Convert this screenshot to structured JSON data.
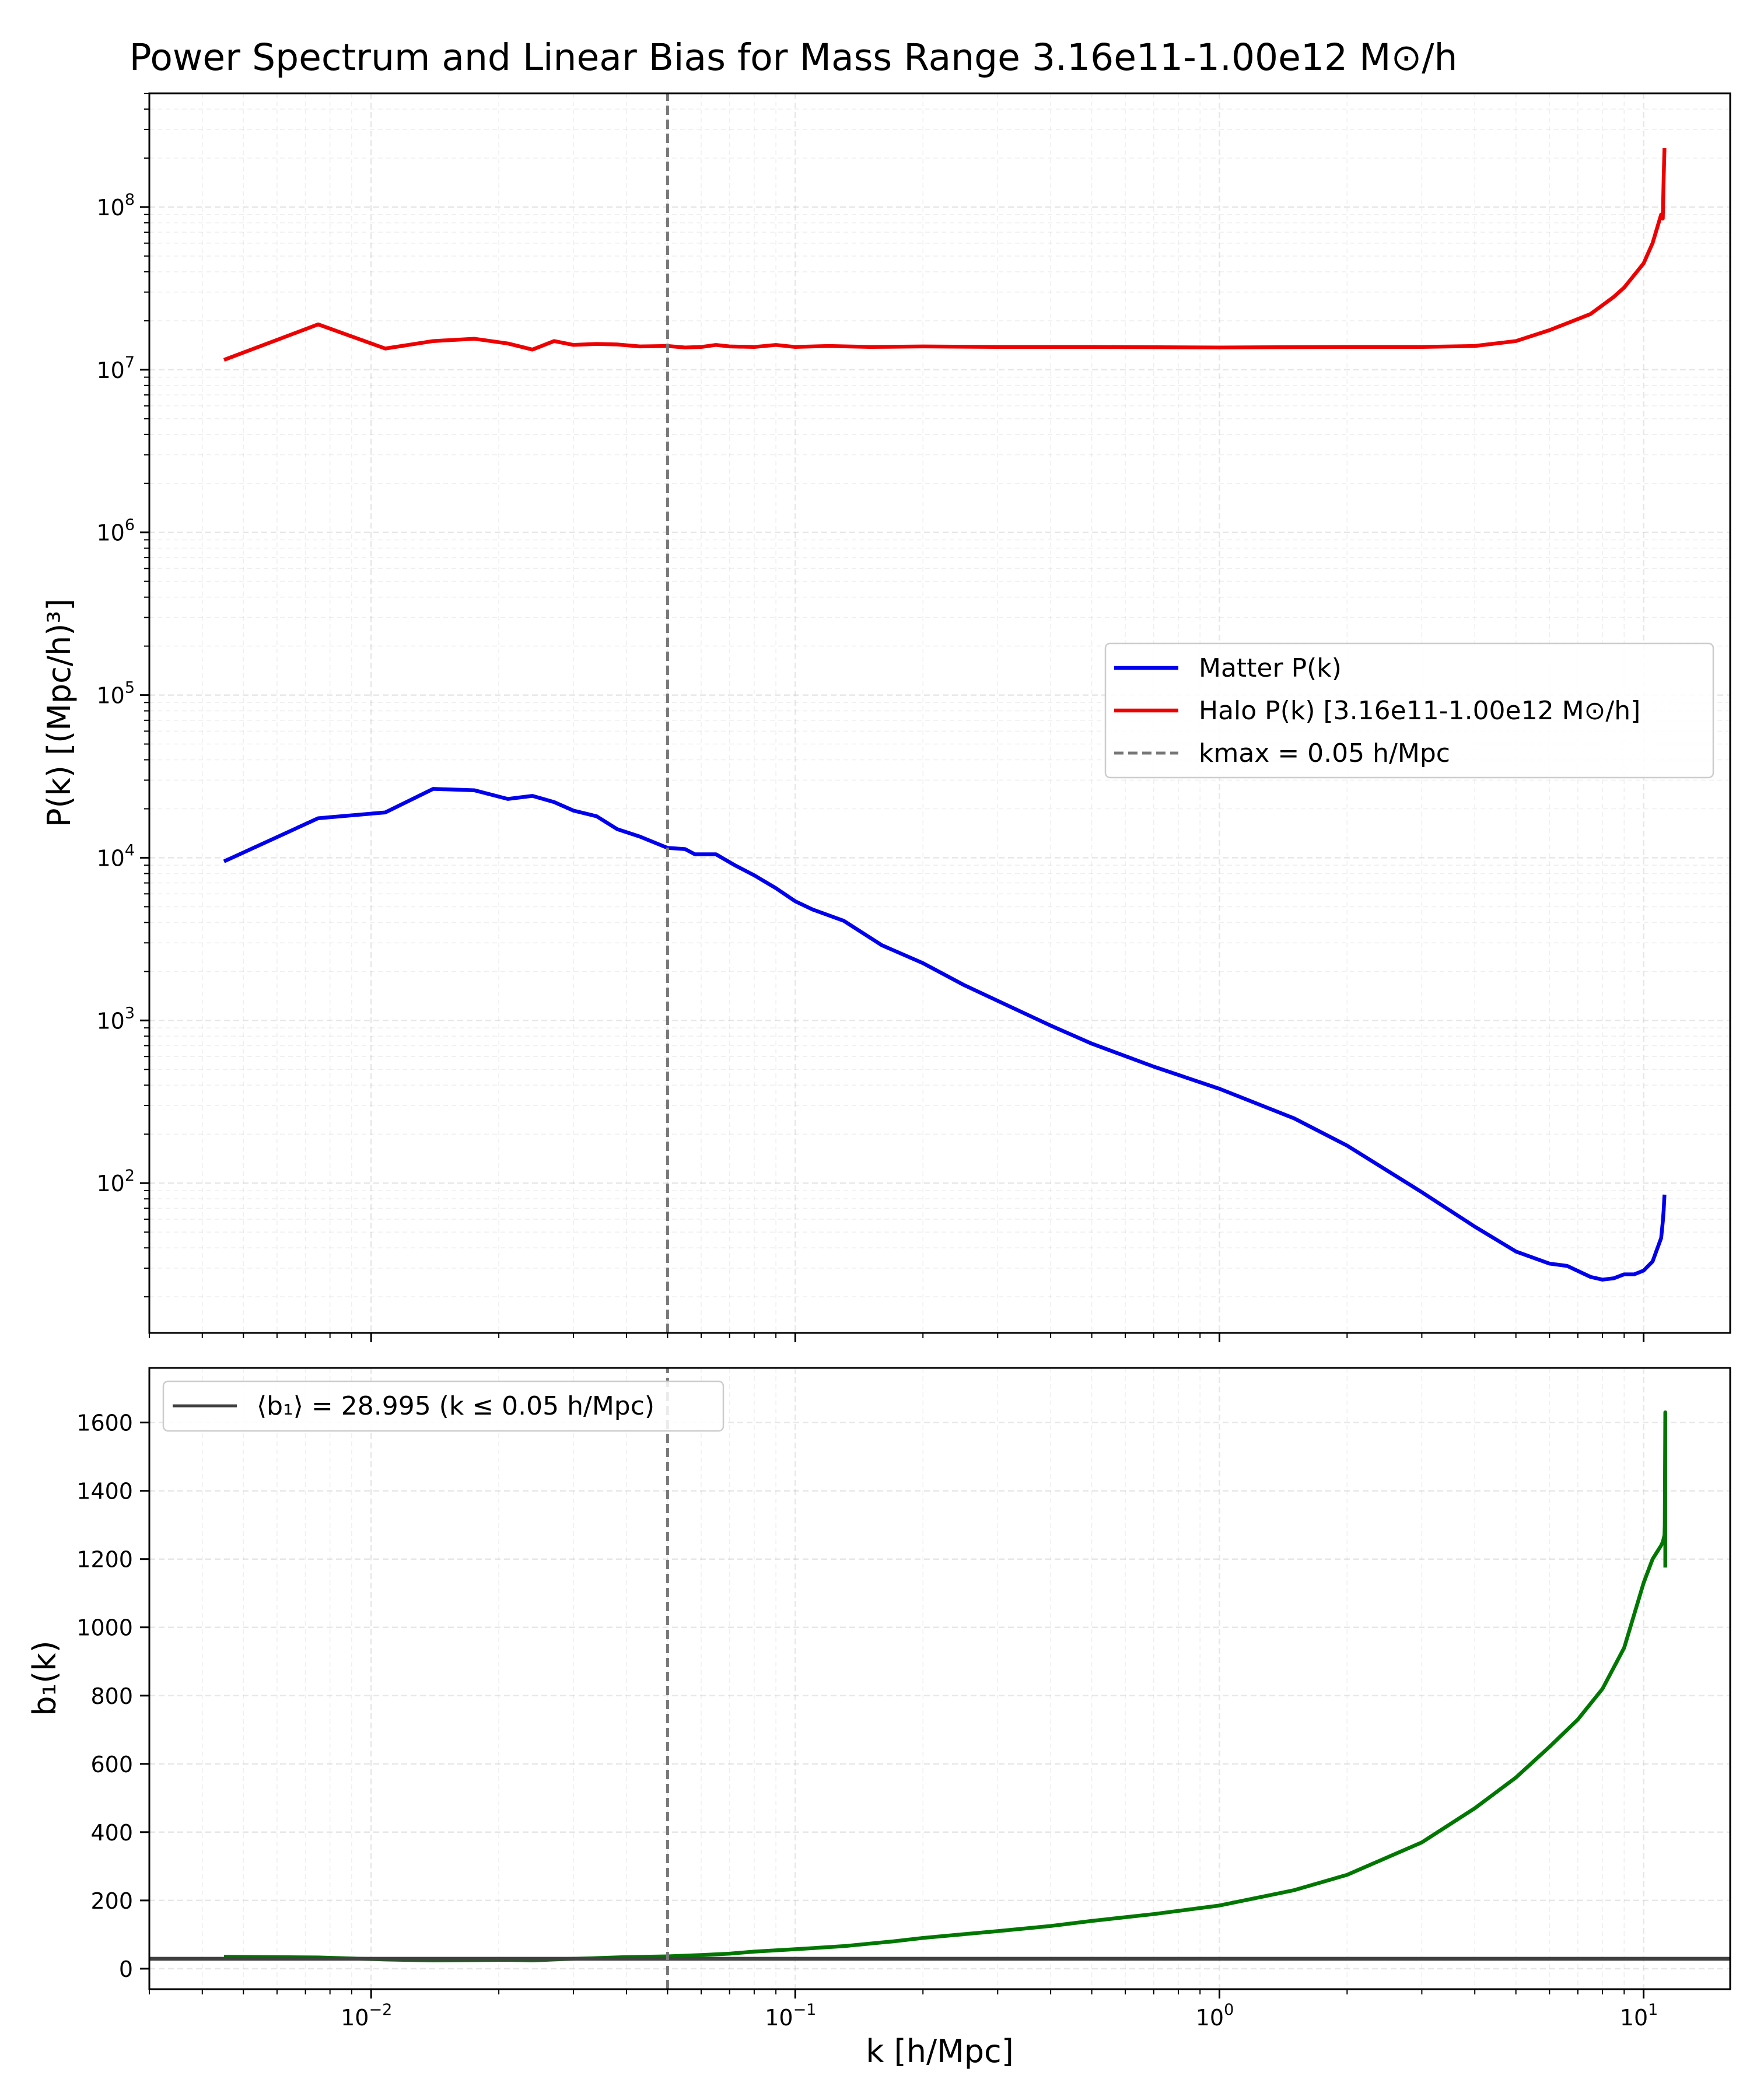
{
  "chart_data": [
    {
      "type": "line",
      "panel": "top",
      "title": "Power Spectrum and Linear Bias for Mass Range 3.16e11-1.00e12 M⊙/h",
      "xlabel": "",
      "ylabel": "P(k) [(Mpc/h)³]",
      "xscale": "log",
      "yscale": "log",
      "xlim": [
        0.003,
        16
      ],
      "ylim": [
        12,
        500000000
      ],
      "x_ticks": [
        0.01,
        0.1,
        1,
        10
      ],
      "y_ticks": [
        {
          "value": 100,
          "label": "10",
          "exp": "2"
        },
        {
          "value": 1000,
          "label": "10",
          "exp": "3"
        },
        {
          "value": 10000,
          "label": "10",
          "exp": "4"
        },
        {
          "value": 100000,
          "label": "10",
          "exp": "5"
        },
        {
          "value": 1000000,
          "label": "10",
          "exp": "6"
        },
        {
          "value": 10000000,
          "label": "10",
          "exp": "7"
        },
        {
          "value": 100000000,
          "label": "10",
          "exp": "8"
        }
      ],
      "grid": true,
      "legend_position": "center-right",
      "series": [
        {
          "name": "Matter P(k)",
          "color": "#0000ee",
          "x": [
            0.0045,
            0.0075,
            0.0108,
            0.014,
            0.0175,
            0.021,
            0.024,
            0.027,
            0.03,
            0.034,
            0.038,
            0.043,
            0.05,
            0.055,
            0.058,
            0.065,
            0.072,
            0.08,
            0.09,
            0.1,
            0.11,
            0.13,
            0.16,
            0.2,
            0.25,
            0.3,
            0.4,
            0.5,
            0.7,
            1.0,
            1.5,
            2.0,
            3.0,
            4.0,
            5.0,
            6.0,
            6.6,
            7.5,
            8.0,
            8.5,
            9.0,
            9.5,
            10.0,
            10.5,
            11.0,
            11.1,
            11.15,
            11.2
          ],
          "y": [
            9500,
            17500,
            19000,
            26500,
            26000,
            23000,
            24000,
            22000,
            19500,
            18000,
            15000,
            13500,
            11500,
            11300,
            10500,
            10500,
            9000,
            7800,
            6500,
            5400,
            4800,
            4100,
            2900,
            2250,
            1650,
            1320,
            930,
            720,
            520,
            380,
            250,
            170,
            88,
            54,
            38,
            32,
            31,
            26.5,
            25.5,
            26,
            27.5,
            27.5,
            29,
            33,
            46,
            58,
            68,
            85
          ]
        },
        {
          "name": "Halo P(k) [3.16e11-1.00e12 M⊙/h]",
          "color": "#ee0000",
          "x": [
            0.0045,
            0.0075,
            0.0108,
            0.014,
            0.0175,
            0.021,
            0.024,
            0.027,
            0.03,
            0.034,
            0.038,
            0.043,
            0.05,
            0.055,
            0.06,
            0.065,
            0.07,
            0.08,
            0.09,
            0.1,
            0.12,
            0.15,
            0.2,
            0.3,
            0.5,
            1.0,
            2.0,
            3.0,
            4.0,
            5.0,
            6.0,
            6.5,
            7.5,
            8.5,
            9.0,
            10.0,
            10.5,
            11.0,
            11.1,
            11.15,
            11.2
          ],
          "y": [
            11500000,
            19000000,
            13500000,
            15000000,
            15500000,
            14500000,
            13300000,
            15000000,
            14200000,
            14400000,
            14300000,
            13900000,
            14000000,
            13700000,
            13800000,
            14200000,
            13900000,
            13800000,
            14200000,
            13800000,
            14000000,
            13800000,
            13900000,
            13800000,
            13800000,
            13700000,
            13800000,
            13800000,
            14000000,
            15000000,
            17500000,
            19000000,
            22000000,
            28000000,
            32000000,
            45000000,
            60000000,
            90000000,
            85000000,
            150000000,
            230000000
          ]
        },
        {
          "name": "kmax = 0.05 h/Mpc",
          "color": "#777777",
          "style": "dashed",
          "x": [
            0.05,
            0.05
          ],
          "y": [
            12,
            500000000
          ]
        }
      ]
    },
    {
      "type": "line",
      "panel": "bottom",
      "title": "",
      "xlabel": "k [h/Mpc]",
      "ylabel": "b₁(k)",
      "xscale": "log",
      "yscale": "linear",
      "xlim": [
        0.003,
        16
      ],
      "ylim": [
        -60,
        1760
      ],
      "x_ticks": [
        {
          "value": 0.01,
          "label": "10",
          "exp": "−2"
        },
        {
          "value": 0.1,
          "label": "10",
          "exp": "−1"
        },
        {
          "value": 1,
          "label": "10",
          "exp": "0"
        },
        {
          "value": 10,
          "label": "10",
          "exp": "1"
        }
      ],
      "y_ticks": [
        0,
        200,
        400,
        600,
        800,
        1000,
        1200,
        1400,
        1600
      ],
      "grid": true,
      "legend_position": "top-left",
      "series": [
        {
          "name": "",
          "color": "#007700",
          "x": [
            0.0045,
            0.0075,
            0.0108,
            0.014,
            0.0175,
            0.021,
            0.024,
            0.027,
            0.03,
            0.034,
            0.04,
            0.05,
            0.06,
            0.07,
            0.08,
            0.1,
            0.13,
            0.17,
            0.2,
            0.3,
            0.4,
            0.5,
            0.7,
            1.0,
            1.5,
            2.0,
            3.0,
            4.0,
            5.0,
            6.0,
            7.0,
            8.0,
            9.0,
            10.0,
            10.5,
            11.0,
            11.1,
            11.15,
            11.2,
            11.22,
            11.25,
            11.25
          ],
          "y": [
            35,
            33,
            27,
            24,
            25,
            26,
            24,
            27,
            29,
            31,
            34,
            36,
            40,
            44,
            50,
            57,
            66,
            80,
            90,
            110,
            125,
            140,
            160,
            185,
            230,
            275,
            370,
            470,
            560,
            650,
            730,
            820,
            940,
            1130,
            1200,
            1240,
            1250,
            1260,
            1270,
            1300,
            1630,
            1175
          ]
        },
        {
          "name": "⟨b₁⟩ = 28.995 (k ≤ 0.05 h/Mpc)",
          "color": "#404040",
          "x": [
            0.003,
            16
          ],
          "y": [
            28.995,
            28.995
          ]
        },
        {
          "name": "",
          "color": "#777777",
          "style": "dashed",
          "x": [
            0.05,
            0.05
          ],
          "y": [
            -60,
            1760
          ]
        }
      ]
    }
  ]
}
